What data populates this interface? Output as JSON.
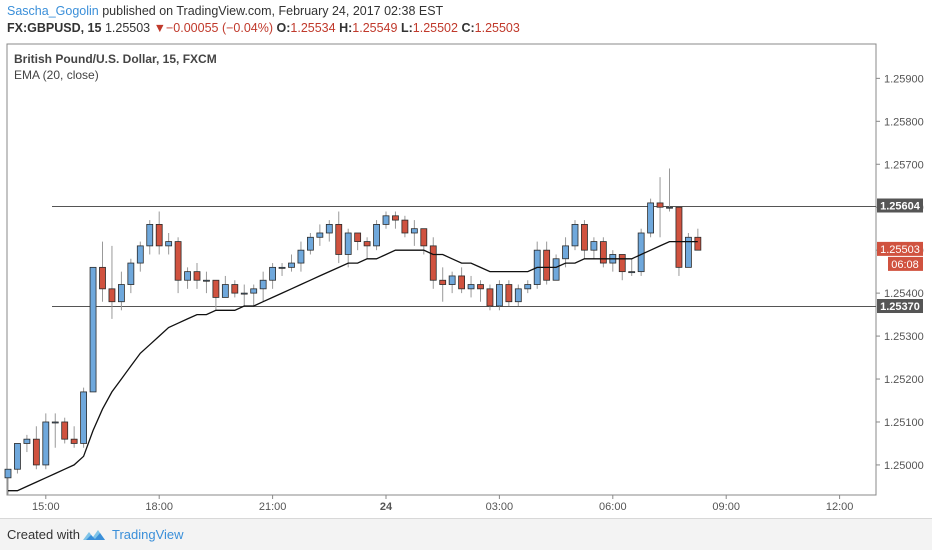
{
  "header": {
    "author": "Sascha_Gogolin",
    "published": "published on TradingView.com, February 24, 2017 02:38 EST",
    "symbol_line": "FX:GBPUSD, 15",
    "last": "1.25503",
    "change": "▼−0.00055 (−0.04%)",
    "o_label": "O:",
    "o_value": "1.25534",
    "h_label": "H:",
    "h_value": "1.25549",
    "l_label": "L:",
    "l_value": "1.25502",
    "c_label": "C:",
    "c_value": "1.25503"
  },
  "footer": {
    "created": "Created with",
    "brand": "TradingView"
  },
  "colors": {
    "up": "#6fa8dc",
    "down": "#d0523f",
    "ema": "#111111",
    "grid_line": "#555555"
  },
  "chart_data": {
    "type": "candlestick",
    "title": "British Pound/U.S. Dollar, 15, FXCM",
    "indicator": "EMA (20, close)",
    "ylim": [
      1.2493,
      1.2598
    ],
    "y_ticks": [
      1.25,
      1.251,
      1.252,
      1.253,
      1.254,
      1.255,
      1.256,
      1.257,
      1.258,
      1.259
    ],
    "y_tick_labels": [
      "1.25000",
      "1.25100",
      "1.25200",
      "1.25300",
      "1.25400",
      "1.25500",
      "1.25600",
      "1.25700",
      "1.25800",
      "1.25900"
    ],
    "x_tick_labels": [
      {
        "label": "15:00",
        "bar": 4
      },
      {
        "label": "18:00",
        "bar": 16
      },
      {
        "label": "21:00",
        "bar": 28
      },
      {
        "label": "24",
        "bar": 40,
        "bold": true
      },
      {
        "label": "03:00",
        "bar": 52
      },
      {
        "label": "06:00",
        "bar": 64
      },
      {
        "label": "09:00",
        "bar": 76
      },
      {
        "label": "12:00",
        "bar": 88
      }
    ],
    "total_bars": 94,
    "horizontal_lines": [
      {
        "value": 1.25604,
        "label": "1.25604"
      },
      {
        "value": 1.2537,
        "label": "1.25370"
      }
    ],
    "last_price": {
      "value": 1.25503,
      "label": "1.25503",
      "countdown": "06:08"
    },
    "candles": [
      [
        1.2497,
        1.2499,
        1.2493,
        1.2499
      ],
      [
        1.2499,
        1.2505,
        1.2498,
        1.2505
      ],
      [
        1.2505,
        1.2507,
        1.2503,
        1.2506
      ],
      [
        1.2506,
        1.2509,
        1.2499,
        1.25
      ],
      [
        1.25,
        1.2512,
        1.2499,
        1.251
      ],
      [
        1.251,
        1.2512,
        1.2504,
        1.251
      ],
      [
        1.251,
        1.2511,
        1.2505,
        1.2506
      ],
      [
        1.2506,
        1.2509,
        1.2504,
        1.2505
      ],
      [
        1.2505,
        1.2518,
        1.2504,
        1.2517
      ],
      [
        1.2517,
        1.2546,
        1.2517,
        1.2546
      ],
      [
        1.2546,
        1.2552,
        1.2538,
        1.2541
      ],
      [
        1.2541,
        1.2551,
        1.2534,
        1.2538
      ],
      [
        1.2538,
        1.2545,
        1.2536,
        1.2542
      ],
      [
        1.2542,
        1.2548,
        1.254,
        1.2547
      ],
      [
        1.2547,
        1.2552,
        1.2545,
        1.2551
      ],
      [
        1.2551,
        1.2557,
        1.2549,
        1.2556
      ],
      [
        1.2556,
        1.2559,
        1.2549,
        1.2551
      ],
      [
        1.2551,
        1.2554,
        1.2549,
        1.2552
      ],
      [
        1.2552,
        1.2553,
        1.254,
        1.2543
      ],
      [
        1.2543,
        1.2546,
        1.2541,
        1.2545
      ],
      [
        1.2545,
        1.2547,
        1.2541,
        1.2543
      ],
      [
        1.2543,
        1.2545,
        1.254,
        1.2543
      ],
      [
        1.2543,
        1.2543,
        1.2536,
        1.2539
      ],
      [
        1.2539,
        1.2544,
        1.2539,
        1.2542
      ],
      [
        1.2542,
        1.2543,
        1.2539,
        1.254
      ],
      [
        1.254,
        1.2542,
        1.2537,
        1.254
      ],
      [
        1.254,
        1.2542,
        1.2537,
        1.2541
      ],
      [
        1.2541,
        1.2545,
        1.2538,
        1.2543
      ],
      [
        1.2543,
        1.2547,
        1.2541,
        1.2546
      ],
      [
        1.2546,
        1.2547,
        1.2544,
        1.2546
      ],
      [
        1.2546,
        1.2549,
        1.2545,
        1.2547
      ],
      [
        1.2547,
        1.2552,
        1.2545,
        1.255
      ],
      [
        1.255,
        1.2554,
        1.2549,
        1.2553
      ],
      [
        1.2553,
        1.2556,
        1.2551,
        1.2554
      ],
      [
        1.2554,
        1.2557,
        1.2552,
        1.2556
      ],
      [
        1.2556,
        1.2559,
        1.2547,
        1.2549
      ],
      [
        1.2549,
        1.2555,
        1.2546,
        1.2554
      ],
      [
        1.2554,
        1.2554,
        1.255,
        1.2552
      ],
      [
        1.2552,
        1.2553,
        1.2548,
        1.2551
      ],
      [
        1.2551,
        1.2557,
        1.255,
        1.2556
      ],
      [
        1.2556,
        1.2559,
        1.2555,
        1.2558
      ],
      [
        1.2558,
        1.2559,
        1.2555,
        1.2557
      ],
      [
        1.2557,
        1.2558,
        1.2553,
        1.2554
      ],
      [
        1.2554,
        1.2557,
        1.2551,
        1.2555
      ],
      [
        1.2555,
        1.2555,
        1.2549,
        1.2551
      ],
      [
        1.2551,
        1.2553,
        1.2541,
        1.2543
      ],
      [
        1.2543,
        1.2546,
        1.2538,
        1.2542
      ],
      [
        1.2542,
        1.2545,
        1.254,
        1.2544
      ],
      [
        1.2544,
        1.2546,
        1.254,
        1.2541
      ],
      [
        1.2541,
        1.2544,
        1.2539,
        1.2542
      ],
      [
        1.2542,
        1.2543,
        1.2538,
        1.2541
      ],
      [
        1.2541,
        1.2542,
        1.2536,
        1.2537
      ],
      [
        1.2537,
        1.2543,
        1.2536,
        1.2542
      ],
      [
        1.2542,
        1.2543,
        1.2537,
        1.2538
      ],
      [
        1.2538,
        1.2542,
        1.2537,
        1.2541
      ],
      [
        1.2541,
        1.2543,
        1.254,
        1.2542
      ],
      [
        1.2542,
        1.2552,
        1.2541,
        1.255
      ],
      [
        1.255,
        1.2552,
        1.2542,
        1.2543
      ],
      [
        1.2543,
        1.2549,
        1.2543,
        1.2548
      ],
      [
        1.2548,
        1.2553,
        1.2546,
        1.2551
      ],
      [
        1.2551,
        1.2557,
        1.255,
        1.2556
      ],
      [
        1.2556,
        1.2557,
        1.2548,
        1.255
      ],
      [
        1.255,
        1.2553,
        1.2548,
        1.2552
      ],
      [
        1.2552,
        1.2553,
        1.2546,
        1.2547
      ],
      [
        1.2547,
        1.255,
        1.2545,
        1.2549
      ],
      [
        1.2549,
        1.2549,
        1.2543,
        1.2545
      ],
      [
        1.2545,
        1.2548,
        1.2544,
        1.2545
      ],
      [
        1.2545,
        1.2555,
        1.2544,
        1.2554
      ],
      [
        1.2554,
        1.2562,
        1.2553,
        1.2561
      ],
      [
        1.2561,
        1.2567,
        1.2553,
        1.256
      ],
      [
        1.256,
        1.2569,
        1.2559,
        1.256
      ],
      [
        1.256,
        1.256,
        1.2544,
        1.2546
      ],
      [
        1.2546,
        1.2554,
        1.2546,
        1.2553
      ],
      [
        1.2553,
        1.2555,
        1.255,
        1.255
      ]
    ],
    "ema": [
      1.2494,
      1.2494,
      1.2495,
      1.2496,
      1.2497,
      1.2498,
      1.2499,
      1.25,
      1.2502,
      1.2508,
      1.2513,
      1.2517,
      1.252,
      1.2523,
      1.2526,
      1.2528,
      1.253,
      1.2532,
      1.2533,
      1.2534,
      1.2535,
      1.2535,
      1.2536,
      1.2536,
      1.2536,
      1.2537,
      1.2537,
      1.2538,
      1.2539,
      1.254,
      1.2541,
      1.2542,
      1.2543,
      1.2544,
      1.2545,
      1.2546,
      1.2547,
      1.2547,
      1.2548,
      1.2548,
      1.2549,
      1.255,
      1.255,
      1.255,
      1.255,
      1.2549,
      1.2549,
      1.2548,
      1.2547,
      1.2547,
      1.2546,
      1.2545,
      1.2545,
      1.2545,
      1.2545,
      1.2545,
      1.2546,
      1.2546,
      1.2546,
      1.2547,
      1.2547,
      1.2548,
      1.2548,
      1.2548,
      1.2548,
      1.2548,
      1.2548,
      1.2549,
      1.255,
      1.2551,
      1.2552,
      1.2552,
      1.2552,
      1.2552
    ]
  }
}
